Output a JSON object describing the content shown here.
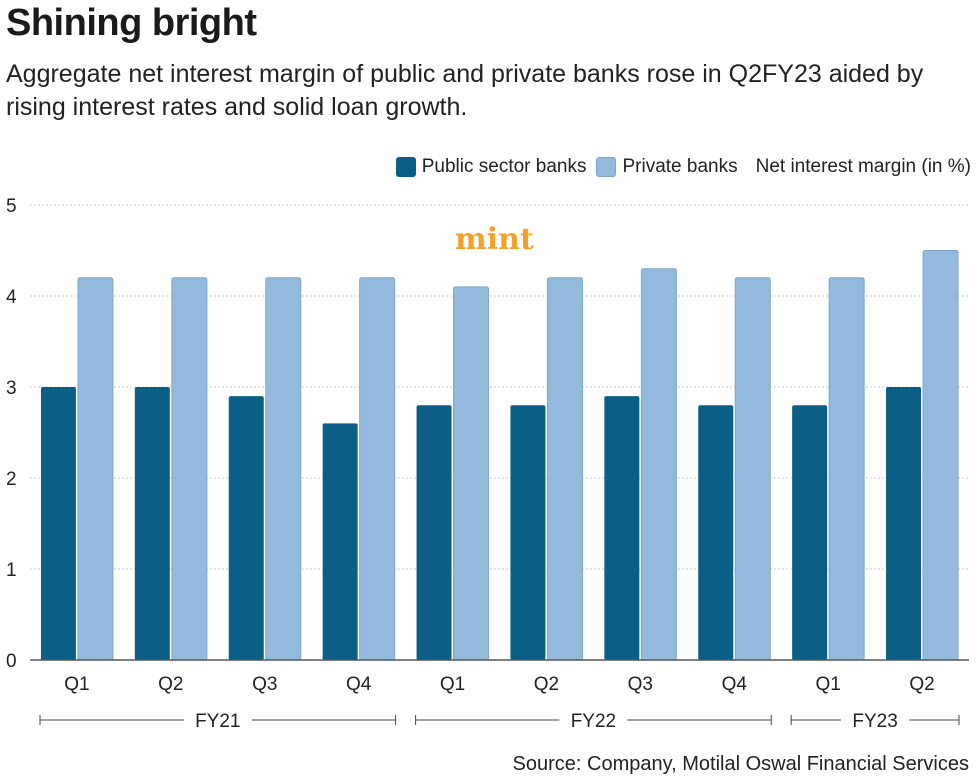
{
  "header": {
    "title": "Shining bright",
    "subtitle": "Aggregate net interest margin of public and private banks rose in Q2FY23 aided by rising interest rates and solid loan growth."
  },
  "legend": {
    "public": "Public sector banks",
    "private": "Private banks",
    "unit_note": "Net interest margin (in %)"
  },
  "watermark": "mint",
  "source": "Source: Company, Motilal Oswal Financial Services",
  "colors": {
    "public": "#0b5e85",
    "private": "#93b9dc",
    "grid": "#c8c8c8",
    "axis": "#555555"
  },
  "chart_data": {
    "type": "bar",
    "title": "Shining bright",
    "ylabel": "Net interest margin (in %)",
    "xlabel": "",
    "ylim": [
      0,
      5
    ],
    "yticks": [
      0,
      1,
      2,
      3,
      4,
      5
    ],
    "grid": true,
    "legend_position": "top-right",
    "categories": [
      "Q1",
      "Q2",
      "Q3",
      "Q4",
      "Q1",
      "Q2",
      "Q3",
      "Q4",
      "Q1",
      "Q2"
    ],
    "groups": [
      {
        "label": "FY21",
        "start": 0,
        "end": 3
      },
      {
        "label": "FY22",
        "start": 4,
        "end": 7
      },
      {
        "label": "FY23",
        "start": 8,
        "end": 9
      }
    ],
    "series": [
      {
        "name": "Public sector banks",
        "values": [
          3.0,
          3.0,
          2.9,
          2.6,
          2.8,
          2.8,
          2.9,
          2.8,
          2.8,
          3.0
        ]
      },
      {
        "name": "Private banks",
        "values": [
          4.2,
          4.2,
          4.2,
          4.2,
          4.1,
          4.2,
          4.3,
          4.2,
          4.2,
          4.5
        ]
      }
    ]
  }
}
